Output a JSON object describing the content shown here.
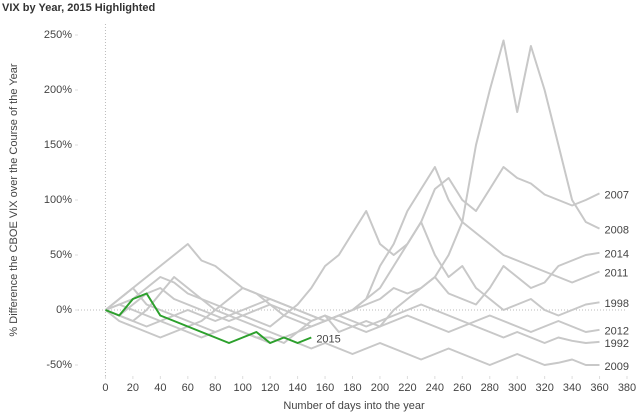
{
  "chart_data": {
    "type": "line",
    "title": "VIX by Year, 2015 Highlighted",
    "x_label": "Number of days into the year",
    "y_label": "% Difference the CBOE VIX over the Course of the Year",
    "x": [
      0,
      10,
      20,
      30,
      40,
      50,
      60,
      70,
      80,
      90,
      100,
      110,
      120,
      130,
      140,
      150,
      160,
      170,
      180,
      190,
      200,
      210,
      220,
      230,
      240,
      250,
      260,
      270,
      280,
      290,
      300,
      310,
      320,
      330,
      340,
      350,
      360
    ],
    "series": [
      {
        "name": "2008",
        "color": "#c8c8c8",
        "values": [
          0,
          10,
          20,
          30,
          40,
          50,
          60,
          45,
          40,
          30,
          20,
          15,
          10,
          5,
          0,
          -5,
          -10,
          -5,
          0,
          5,
          10,
          20,
          15,
          20,
          30,
          50,
          80,
          150,
          200,
          245,
          180,
          240,
          200,
          150,
          100,
          80,
          74
        ]
      },
      {
        "name": "2007",
        "color": "#c8c8c8",
        "values": [
          0,
          -5,
          -10,
          0,
          15,
          30,
          20,
          10,
          5,
          0,
          -5,
          -10,
          -15,
          -5,
          5,
          20,
          40,
          50,
          70,
          90,
          60,
          50,
          60,
          80,
          110,
          120,
          100,
          90,
          110,
          130,
          120,
          115,
          105,
          100,
          95,
          100,
          106
        ]
      },
      {
        "name": "2014",
        "color": "#c8c8c8",
        "values": [
          0,
          10,
          20,
          5,
          0,
          -5,
          -10,
          -15,
          -20,
          -15,
          -20,
          -25,
          -25,
          -30,
          -20,
          -10,
          -5,
          -20,
          -15,
          -10,
          -15,
          0,
          10,
          20,
          30,
          15,
          10,
          5,
          20,
          40,
          30,
          20,
          25,
          40,
          45,
          50,
          52
        ]
      },
      {
        "name": "2011",
        "color": "#c8c8c8",
        "values": [
          0,
          -5,
          5,
          15,
          20,
          10,
          5,
          0,
          -5,
          -10,
          -5,
          0,
          5,
          -5,
          -10,
          -15,
          -10,
          -5,
          0,
          10,
          40,
          60,
          90,
          110,
          130,
          100,
          80,
          70,
          60,
          50,
          45,
          40,
          35,
          30,
          25,
          30,
          35
        ]
      },
      {
        "name": "1998",
        "color": "#c8c8c8",
        "values": [
          0,
          -5,
          -10,
          -15,
          -10,
          -5,
          0,
          -5,
          -10,
          -5,
          0,
          5,
          10,
          5,
          0,
          -5,
          -10,
          -5,
          0,
          10,
          20,
          40,
          60,
          80,
          50,
          30,
          40,
          20,
          10,
          0,
          5,
          10,
          0,
          -5,
          0,
          5,
          7
        ]
      },
      {
        "name": "2012",
        "color": "#c8c8c8",
        "values": [
          0,
          -10,
          -15,
          -20,
          -25,
          -20,
          -15,
          -10,
          0,
          10,
          20,
          15,
          5,
          0,
          -5,
          -10,
          -5,
          -10,
          -15,
          -20,
          -15,
          -10,
          -5,
          -10,
          -15,
          -20,
          -15,
          -10,
          -5,
          -10,
          -15,
          -20,
          -15,
          -10,
          -15,
          -20,
          -18
        ]
      },
      {
        "name": "1992",
        "color": "#c8c8c8",
        "values": [
          0,
          5,
          0,
          -5,
          -10,
          -15,
          -20,
          -25,
          -20,
          -15,
          -20,
          -25,
          -30,
          -25,
          -20,
          -15,
          -10,
          -5,
          -10,
          -15,
          -10,
          -5,
          0,
          5,
          0,
          -5,
          -10,
          -15,
          -20,
          -25,
          -20,
          -25,
          -30,
          -25,
          -28,
          -30,
          -29
        ]
      },
      {
        "name": "2009",
        "color": "#c8c8c8",
        "values": [
          0,
          5,
          10,
          20,
          30,
          25,
          15,
          10,
          0,
          -5,
          -10,
          -15,
          -20,
          -25,
          -30,
          -35,
          -30,
          -35,
          -40,
          -35,
          -30,
          -35,
          -40,
          -45,
          -40,
          -35,
          -40,
          -45,
          -50,
          -45,
          -40,
          -45,
          -50,
          -48,
          -45,
          -50,
          -50
        ]
      },
      {
        "name": "2015",
        "color": "#2ca02c",
        "values": [
          0,
          -5,
          10,
          15,
          -5,
          -10,
          -15,
          -20,
          -25,
          -30,
          -25,
          -20,
          -30,
          -25,
          -30,
          -25,
          null,
          null,
          null,
          null,
          null,
          null,
          null,
          null,
          null,
          null,
          null,
          null,
          null,
          null,
          null,
          null,
          null,
          null,
          null,
          null,
          null
        ]
      }
    ],
    "xlim": [
      -20,
      380
    ],
    "xticks": [
      0,
      20,
      40,
      60,
      80,
      100,
      120,
      140,
      160,
      180,
      200,
      220,
      240,
      260,
      280,
      300,
      320,
      340,
      360,
      380
    ],
    "ylim": [
      -60,
      260
    ],
    "yticks": [
      {
        "value": -50,
        "label": "-50%"
      },
      {
        "value": 0,
        "label": "0%"
      },
      {
        "value": 50,
        "label": "50%"
      },
      {
        "value": 100,
        "label": "100%"
      },
      {
        "value": 150,
        "label": "150%"
      },
      {
        "value": 200,
        "label": "200%"
      },
      {
        "value": 250,
        "label": "250%"
      }
    ]
  }
}
